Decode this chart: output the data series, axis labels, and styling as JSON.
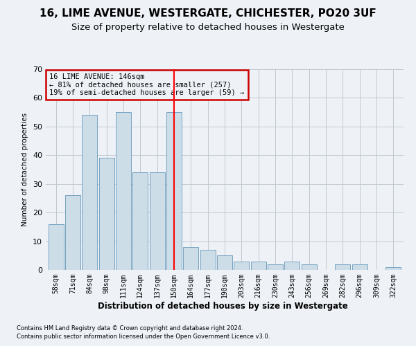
{
  "title1": "16, LIME AVENUE, WESTERGATE, CHICHESTER, PO20 3UF",
  "title2": "Size of property relative to detached houses in Westergate",
  "xlabel": "Distribution of detached houses by size in Westergate",
  "ylabel": "Number of detached properties",
  "bar_labels": [
    "58sqm",
    "71sqm",
    "84sqm",
    "98sqm",
    "111sqm",
    "124sqm",
    "137sqm",
    "150sqm",
    "164sqm",
    "177sqm",
    "190sqm",
    "203sqm",
    "216sqm",
    "230sqm",
    "243sqm",
    "256sqm",
    "269sqm",
    "282sqm",
    "296sqm",
    "309sqm",
    "322sqm"
  ],
  "bar_values": [
    16,
    26,
    54,
    39,
    55,
    34,
    34,
    55,
    8,
    7,
    5,
    3,
    3,
    2,
    3,
    2,
    0,
    2,
    2,
    0,
    1
  ],
  "bar_color": "#ccdde8",
  "bar_edge_color": "#6699bb",
  "red_line_index": 7,
  "annotation_title": "16 LIME AVENUE: 146sqm",
  "annotation_line1": "← 81% of detached houses are smaller (257)",
  "annotation_line2": "19% of semi-detached houses are larger (59) →",
  "ylim": [
    0,
    70
  ],
  "yticks": [
    0,
    10,
    20,
    30,
    40,
    50,
    60,
    70
  ],
  "footnote1": "Contains HM Land Registry data © Crown copyright and database right 2024.",
  "footnote2": "Contains public sector information licensed under the Open Government Licence v3.0.",
  "bg_color": "#eef2f7",
  "title1_fontsize": 11,
  "title2_fontsize": 9.5,
  "annotation_box_edge_color": "#cc0000",
  "grid_color": "#c0c8d0"
}
